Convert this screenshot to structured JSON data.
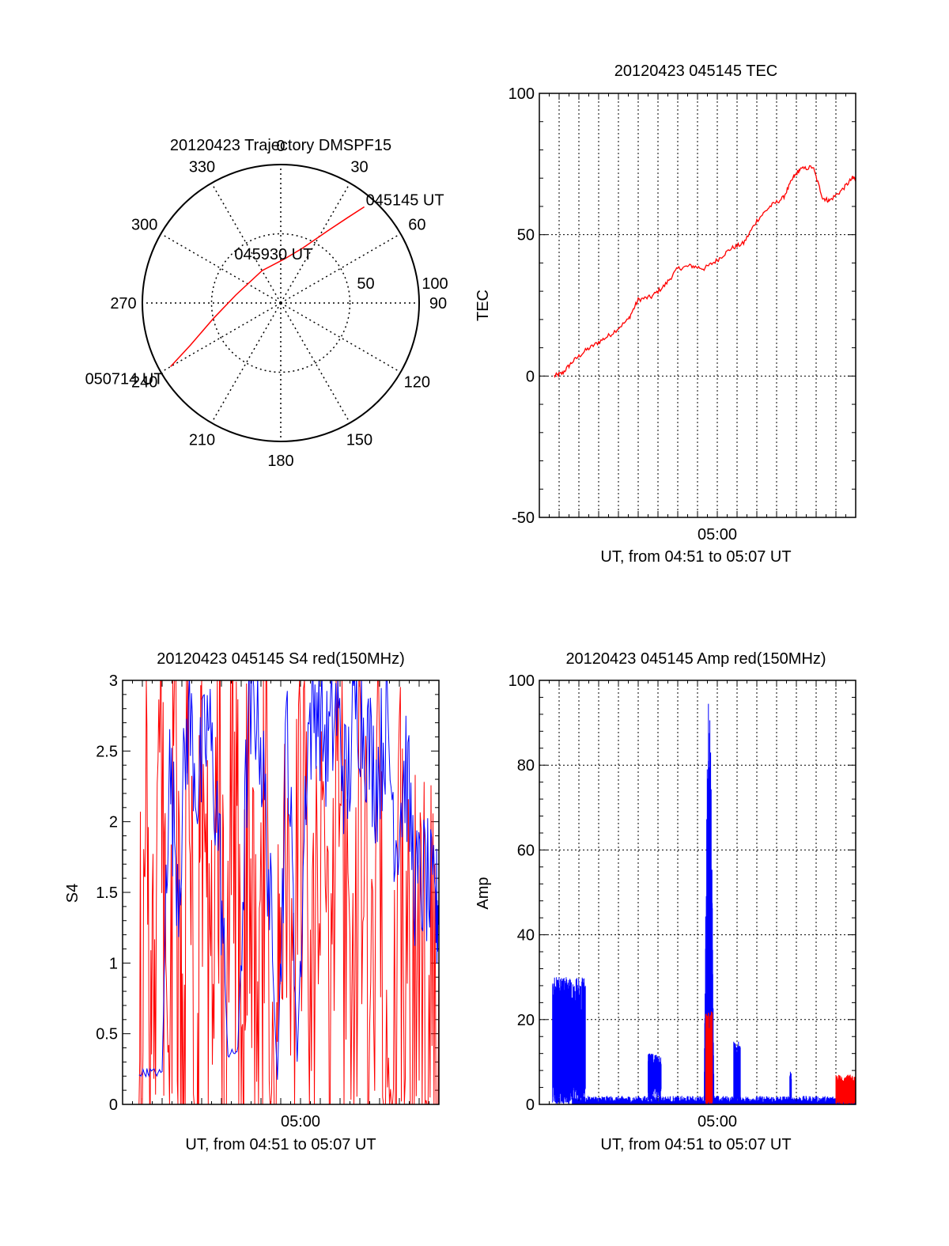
{
  "colors": {
    "red": "#ff0000",
    "blue": "#0000ff",
    "grid": "#000000",
    "axis": "#000000"
  },
  "chart_data": [
    {
      "id": "trajectory",
      "type": "polar",
      "title": "20120423 Trajectory DMSPF15",
      "angle_labels": [
        {
          "angle": 0,
          "text": "0"
        },
        {
          "angle": 30,
          "text": "30"
        },
        {
          "angle": 60,
          "text": "60"
        },
        {
          "angle": 90,
          "text": "90"
        },
        {
          "angle": 120,
          "text": "120"
        },
        {
          "angle": 150,
          "text": "150"
        },
        {
          "angle": 180,
          "text": "180"
        },
        {
          "angle": 210,
          "text": "210"
        },
        {
          "angle": 240,
          "text": "240"
        },
        {
          "angle": 270,
          "text": "270"
        },
        {
          "angle": 300,
          "text": "300"
        },
        {
          "angle": 330,
          "text": "330"
        }
      ],
      "radial_max": 100,
      "radial_labels": [
        {
          "value": 50,
          "text": "50"
        },
        {
          "value": 100,
          "text": "100"
        }
      ],
      "track": {
        "color": "red",
        "points": [
          {
            "az": 41,
            "zd": 92
          },
          {
            "az": 38,
            "zd": 78
          },
          {
            "az": 33,
            "zd": 62
          },
          {
            "az": 22,
            "zd": 43
          },
          {
            "az": 5,
            "zd": 32
          },
          {
            "az": 330,
            "zd": 27
          },
          {
            "az": 280,
            "zd": 33
          },
          {
            "az": 257,
            "zd": 50
          },
          {
            "az": 245,
            "zd": 72
          },
          {
            "az": 240,
            "zd": 92
          }
        ]
      },
      "annotations": [
        {
          "text": "045145 UT",
          "az": 41,
          "zd": 92
        },
        {
          "text": "045930 UT",
          "az": 330,
          "zd": 27
        },
        {
          "text": "050714 UT",
          "az": 240,
          "zd": 92
        }
      ]
    },
    {
      "id": "tec",
      "type": "line",
      "title": "20120423 045145 TEC",
      "ylabel": "TEC",
      "xlabel": "UT, from 04:51 to 05:07 UT",
      "xlim": [
        "04:51",
        "05:07"
      ],
      "xtick_labels": [
        {
          "x": "05:00",
          "text": "05:00"
        }
      ],
      "ylim": [
        -50,
        100
      ],
      "ytick_labels": [
        "-50",
        "0",
        "50",
        "100"
      ],
      "grid": true,
      "series": [
        {
          "color": "red",
          "x": [
            "04:51:45",
            "04:52:10",
            "04:52:40",
            "04:53:20",
            "04:54:00",
            "04:54:40",
            "04:55:30",
            "04:56:00",
            "04:56:40",
            "04:57:20",
            "04:58:00",
            "04:58:40",
            "04:59:20",
            "05:00:00",
            "05:00:40",
            "05:01:20",
            "05:02:00",
            "05:02:40",
            "05:03:20",
            "05:03:50",
            "05:04:10",
            "05:04:50",
            "05:05:20",
            "05:05:40",
            "05:06:20",
            "05:06:50",
            "05:07:00"
          ],
          "y": [
            0,
            1,
            5,
            9,
            12,
            15,
            20,
            27,
            28,
            32,
            38,
            39,
            38,
            41,
            45,
            47,
            55,
            60,
            63,
            70,
            73,
            74,
            63,
            62,
            66,
            70,
            70
          ]
        }
      ]
    },
    {
      "id": "s4",
      "type": "line",
      "title": "20120423 045145 S4 red(150MHz)",
      "ylabel": "S4",
      "xlabel": "UT, from 04:51 to 05:07 UT",
      "xlim": [
        "04:51",
        "05:07"
      ],
      "xtick_labels": [
        {
          "x": "05:00",
          "text": "05:00"
        }
      ],
      "ylim": [
        0,
        3
      ],
      "ytick_labels": [
        "0",
        "0.5",
        "1",
        "1.5",
        "2",
        "2.5",
        "3"
      ],
      "grid": false,
      "series": [
        {
          "color": "red",
          "x": [
            "04:51:50",
            "04:52:10",
            "04:52:30",
            "04:52:55",
            "04:53:15",
            "04:53:40",
            "04:54:00",
            "04:54:20",
            "04:54:45",
            "04:55:00",
            "04:55:25",
            "04:55:50",
            "04:56:10",
            "04:56:35",
            "04:57:00",
            "04:57:20",
            "04:57:50",
            "04:58:15",
            "04:58:40",
            "04:59:00",
            "04:59:30",
            "05:00:00",
            "05:00:30",
            "05:01:00",
            "05:01:30",
            "05:02:00",
            "05:02:30",
            "05:03:00",
            "05:03:30",
            "05:04:00",
            "05:04:30",
            "05:05:00",
            "05:05:30",
            "05:06:00",
            "05:06:30",
            "05:07:00"
          ],
          "y": [
            0,
            3,
            0.2,
            3,
            0,
            3,
            0,
            2.8,
            0,
            3,
            0.1,
            3,
            0,
            3,
            0.3,
            3,
            0,
            3,
            0,
            3,
            0.1,
            3,
            0.2,
            3,
            0.1,
            3,
            0.2,
            3,
            0.4,
            2.4,
            0.3,
            1.6,
            0.6,
            1.2,
            0.8,
            1.0
          ]
        },
        {
          "color": "blue",
          "x": [
            "04:51:50",
            "04:52:20",
            "04:53:00",
            "04:53:20",
            "04:53:50",
            "04:54:20",
            "04:54:50",
            "04:55:20",
            "04:55:50",
            "04:56:20",
            "04:56:50",
            "04:57:20",
            "04:57:50",
            "04:58:20",
            "04:58:50",
            "04:59:20",
            "04:59:50",
            "05:00:20",
            "05:00:50",
            "05:01:20",
            "05:01:50",
            "05:02:20",
            "05:02:50",
            "05:03:20",
            "05:03:50",
            "05:04:20",
            "05:04:50",
            "05:05:20",
            "05:05:50",
            "05:06:20",
            "05:06:50",
            "05:07:00"
          ],
          "y": [
            0.22,
            0.23,
            0.22,
            2.4,
            1.6,
            2.8,
            2.2,
            2.7,
            2.0,
            0.35,
            0.38,
            2.6,
            2.9,
            1.8,
            0.2,
            2.8,
            0.3,
            2.6,
            2.9,
            2.5,
            2.8,
            2.2,
            2.9,
            2.6,
            2.3,
            2.7,
            1.9,
            2.4,
            1.5,
            1.6,
            1.3,
            1.5
          ]
        }
      ]
    },
    {
      "id": "amp",
      "type": "line",
      "title": "20120423 045145 Amp red(150MHz)",
      "ylabel": "Amp",
      "xlabel": "UT, from 04:51 to 05:07 UT",
      "xlim": [
        "04:51",
        "05:07"
      ],
      "xtick_labels": [
        {
          "x": "05:00",
          "text": "05:00"
        }
      ],
      "ylim": [
        0,
        100
      ],
      "ytick_labels": [
        "0",
        "20",
        "40",
        "60",
        "80",
        "100"
      ],
      "grid": true,
      "series": [
        {
          "color": "blue",
          "bursts": [
            {
              "from": "04:51:40",
              "to": "04:53:20",
              "low": 5,
              "high": 30
            },
            {
              "from": "04:56:30",
              "to": "04:57:10",
              "low": 5,
              "high": 12
            },
            {
              "from": "04:59:20",
              "to": "04:59:50",
              "low": 2,
              "high": 97
            },
            {
              "from": "05:00:50",
              "to": "05:01:10",
              "low": 2,
              "high": 15
            },
            {
              "from": "05:03:40",
              "to": "05:03:45",
              "low": 1,
              "high": 8
            }
          ],
          "baseline": [
            0.5,
            2
          ]
        },
        {
          "color": "red",
          "bursts": [
            {
              "from": "04:59:25",
              "to": "04:59:45",
              "low": 1,
              "high": 22
            },
            {
              "from": "05:06:00",
              "to": "05:07:00",
              "low": 1,
              "high": 7
            }
          ]
        }
      ]
    }
  ]
}
